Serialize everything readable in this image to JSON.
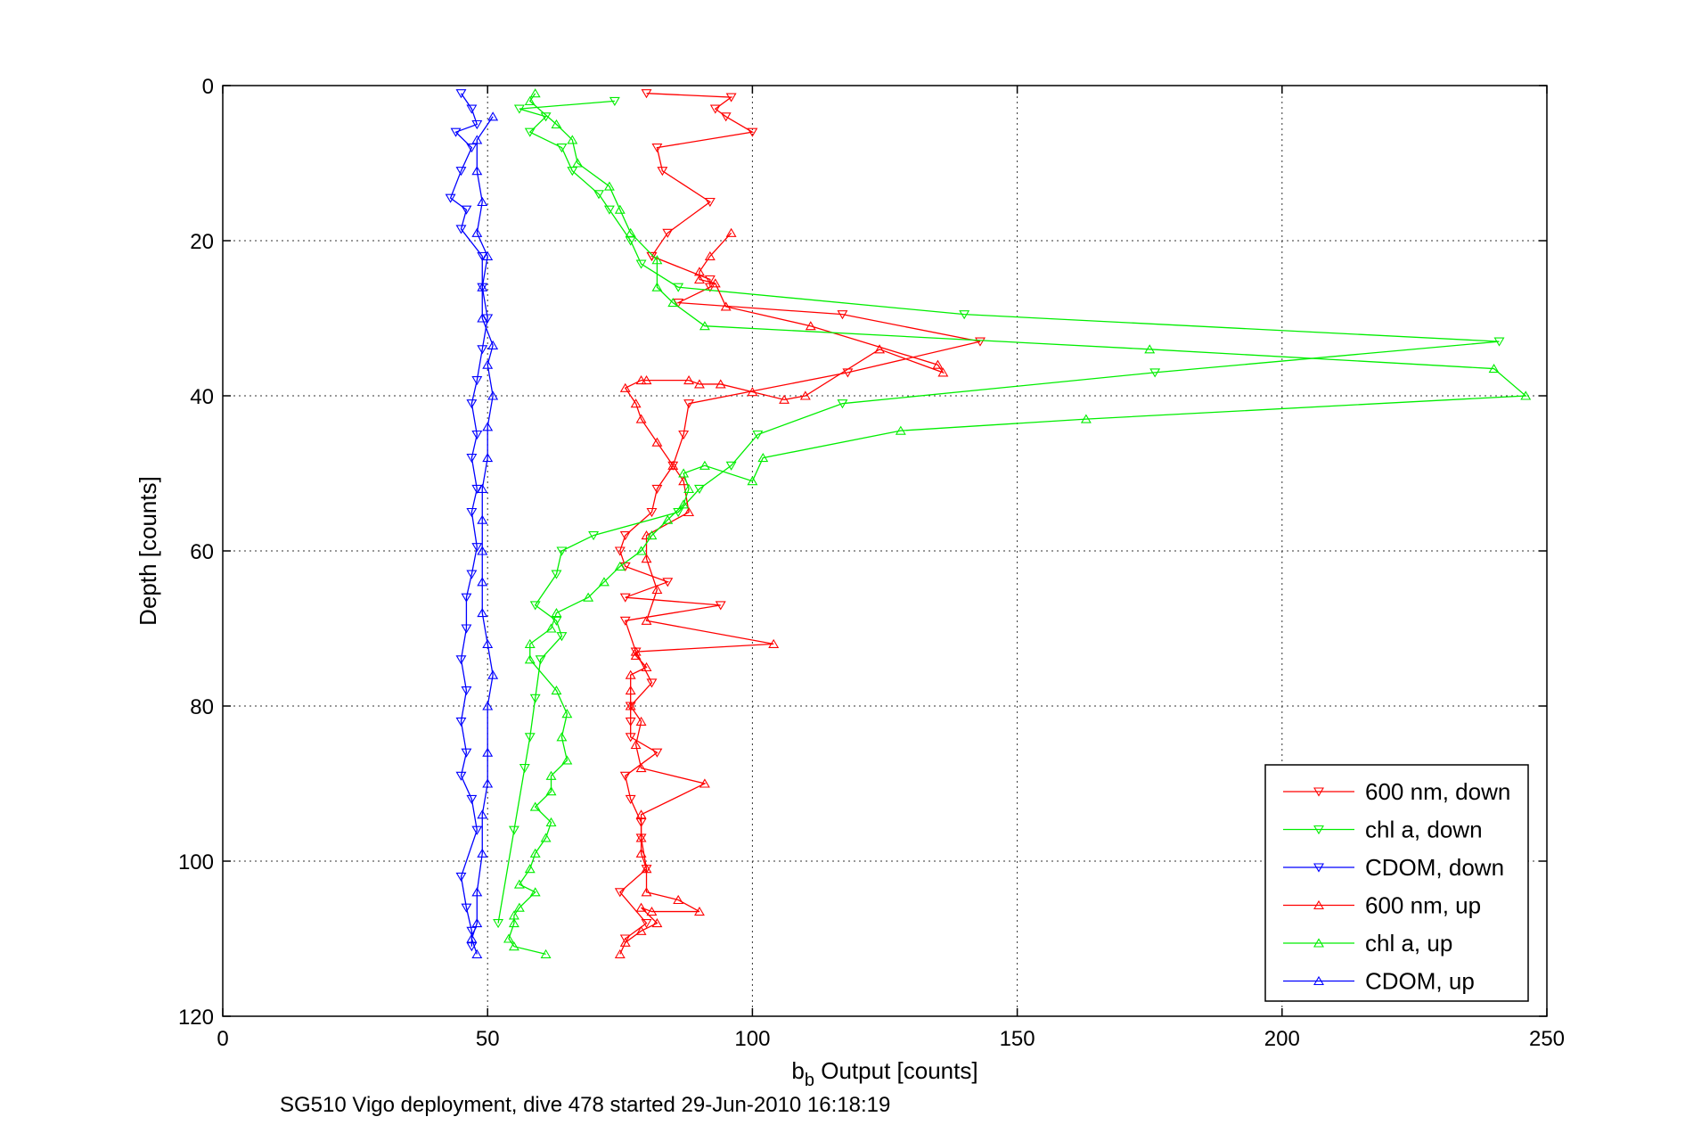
{
  "colors": {
    "red": "#ff0000",
    "green": "#00ee00",
    "blue": "#0000ff"
  },
  "chart_data": {
    "type": "line",
    "xlabel_main": "b",
    "xlabel_sub": "b",
    "xlabel_rest": " Output [counts]",
    "ylabel": "Depth [counts]",
    "caption": "SG510 Vigo deployment, dive 478 started 29-Jun-2010 16:18:19",
    "xlim": [
      0,
      250
    ],
    "ylim": [
      0,
      120
    ],
    "y_reversed": true,
    "grid": true,
    "xticks": [
      0,
      50,
      100,
      150,
      200,
      250
    ],
    "yticks": [
      0,
      20,
      40,
      60,
      80,
      100,
      120
    ],
    "legend_position": "bottom-right",
    "series": [
      {
        "name": "600 nm, down",
        "color": "#ff0000",
        "marker": "triangle-down",
        "x": [
          80,
          96,
          93,
          95,
          100,
          82,
          83,
          92,
          84,
          81,
          81,
          92,
          92,
          86,
          117,
          143,
          118,
          88,
          87,
          85,
          82,
          81,
          76,
          75,
          76,
          84,
          76,
          94,
          76,
          78,
          81,
          77,
          77,
          77,
          82,
          76,
          77,
          79,
          79,
          80,
          75,
          80,
          76
        ],
        "y": [
          1,
          1.5,
          3,
          4,
          6,
          8,
          11,
          15,
          19,
          22,
          22,
          25,
          26,
          28,
          29.5,
          33,
          37,
          41,
          45,
          49,
          52,
          55,
          58,
          60,
          62,
          64,
          66,
          67,
          69,
          73,
          77,
          80,
          82,
          84,
          86,
          89,
          92,
          95,
          97,
          101,
          104,
          108,
          110
        ]
      },
      {
        "name": "chl a, down",
        "color": "#00ee00",
        "marker": "triangle-down",
        "x": [
          74,
          56,
          61,
          58,
          64,
          66,
          71,
          73,
          77,
          79,
          86,
          140,
          241,
          176,
          117,
          101,
          96,
          90,
          86,
          70,
          64,
          63,
          59,
          63,
          64,
          60,
          59,
          58,
          57,
          55,
          52
        ],
        "y": [
          2,
          3,
          4,
          6,
          8,
          11,
          14,
          16,
          20,
          23,
          26,
          29.5,
          33,
          37,
          41,
          45,
          49,
          52,
          55,
          58,
          60,
          63,
          67,
          69,
          71,
          74,
          79,
          84,
          88,
          96,
          108
        ]
      },
      {
        "name": "CDOM, down",
        "color": "#0000ff",
        "marker": "triangle-down",
        "x": [
          45,
          47,
          48,
          44,
          47,
          45,
          43,
          46,
          45,
          49,
          49,
          50,
          49,
          48,
          47,
          48,
          47,
          48,
          47,
          48,
          47,
          46,
          46,
          45,
          46,
          45,
          46,
          45,
          47,
          48,
          45,
          46,
          47,
          47
        ],
        "y": [
          1,
          3,
          5,
          6,
          8,
          11,
          14.5,
          16,
          18.5,
          22,
          26,
          30,
          34,
          38,
          41,
          45,
          48,
          52,
          55,
          59.5,
          63,
          66,
          70,
          74,
          78,
          82,
          86,
          89,
          92,
          96,
          102,
          106,
          109,
          111
        ]
      },
      {
        "name": "600 nm, up",
        "color": "#ff0000",
        "marker": "triangle-up",
        "x": [
          75,
          76,
          79,
          82,
          79,
          81,
          90,
          86,
          80,
          80,
          79,
          79,
          79,
          91,
          79,
          78,
          79,
          77,
          77,
          77,
          80,
          78,
          78,
          104,
          80,
          82,
          80,
          80,
          88,
          87,
          85,
          82,
          79,
          78,
          76,
          79,
          80,
          88,
          90,
          94,
          100,
          106,
          110,
          124,
          136,
          135,
          111,
          95,
          93,
          90,
          90,
          92,
          96
        ],
        "y": [
          112,
          110.5,
          109,
          108,
          106,
          106.5,
          106.5,
          105,
          104,
          101,
          99,
          97,
          94,
          90,
          88,
          85,
          82,
          80,
          78,
          76,
          75,
          73.5,
          73,
          72,
          69,
          65,
          61,
          58,
          55,
          51,
          49,
          46,
          43,
          41,
          39,
          38,
          38,
          38,
          38.5,
          38.5,
          39.5,
          40.5,
          40,
          34,
          37,
          36,
          31,
          28.5,
          25.5,
          25,
          24,
          22,
          19
        ]
      },
      {
        "name": "chl a, up",
        "color": "#00ee00",
        "marker": "triangle-up",
        "x": [
          61,
          55,
          54,
          55,
          55,
          56,
          59,
          56,
          58,
          59,
          61,
          62,
          59,
          62,
          62,
          65,
          64,
          65,
          63,
          58,
          58,
          62,
          63,
          69,
          72,
          75,
          79,
          81,
          84,
          87,
          88,
          87,
          91,
          100,
          102,
          128,
          163,
          246,
          240,
          175,
          91,
          85,
          82,
          82,
          77,
          75,
          73,
          67,
          66,
          63,
          58,
          59
        ],
        "y": [
          112,
          111,
          110,
          108,
          107,
          106,
          104,
          103,
          101,
          99,
          97,
          95,
          93,
          91,
          89,
          87,
          84,
          81,
          78,
          74,
          72,
          70,
          68,
          66,
          64,
          62,
          60,
          58,
          56,
          54,
          52,
          50,
          49,
          51,
          48,
          44.5,
          43,
          40,
          36.5,
          34,
          31,
          28,
          26,
          22.5,
          19,
          16,
          13,
          10,
          7,
          5,
          2,
          1
        ]
      },
      {
        "name": "CDOM, up",
        "color": "#0000ff",
        "marker": "triangle-up",
        "x": [
          48,
          47,
          48,
          48,
          49,
          49,
          50,
          50,
          50,
          51,
          50,
          49,
          49,
          49,
          49,
          49,
          50,
          50,
          51,
          50,
          51,
          49,
          49,
          50,
          48,
          49,
          48,
          48,
          51
        ],
        "y": [
          112,
          110,
          108,
          104,
          99,
          94,
          90,
          86,
          80,
          76,
          72,
          68,
          64,
          60,
          56,
          52,
          48,
          44,
          40,
          36,
          33.5,
          30,
          26,
          22,
          19,
          15,
          11,
          7,
          4
        ]
      }
    ]
  }
}
